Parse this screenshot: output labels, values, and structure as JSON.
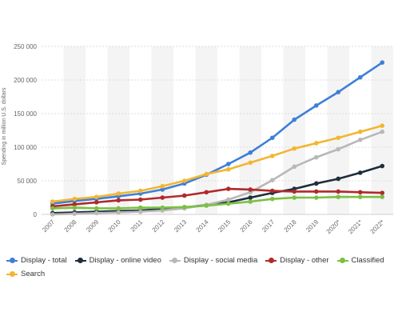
{
  "chart_data": {
    "type": "line",
    "ylabel": "Spending in million U.S. dollars",
    "ylim": [
      0,
      250000
    ],
    "yticks": [
      0,
      50000,
      100000,
      150000,
      200000,
      250000
    ],
    "ytick_labels": [
      "0",
      "50 000",
      "100 000",
      "150 000",
      "200 000",
      "250 000"
    ],
    "x": [
      "2007",
      "2008",
      "2009",
      "2010",
      "2011",
      "2012",
      "2013",
      "2014",
      "2015",
      "2016",
      "2017",
      "2018",
      "2019",
      "2020*",
      "2021*",
      "2022*"
    ],
    "grid": true,
    "legend_position": "bottom",
    "series": [
      {
        "name": "Display - total",
        "color": "#3d7fd8",
        "values": [
          16000,
          20000,
          23000,
          27000,
          31000,
          37000,
          46000,
          59000,
          75000,
          92000,
          114000,
          141000,
          162000,
          182000,
          204000,
          226000
        ]
      },
      {
        "name": "Display - online video",
        "color": "#1f2d3d",
        "values": [
          2000,
          3000,
          4000,
          5000,
          6000,
          8000,
          10000,
          14000,
          18000,
          25000,
          32000,
          38000,
          46000,
          53000,
          62000,
          72000
        ]
      },
      {
        "name": "Display - social media",
        "color": "#b8b8b8",
        "values": [
          0,
          1000,
          2000,
          3000,
          4000,
          6000,
          9000,
          14000,
          22000,
          33000,
          51000,
          71000,
          85000,
          97000,
          111000,
          123000
        ]
      },
      {
        "name": "Display - other",
        "color": "#b02a2a",
        "values": [
          12000,
          15000,
          18000,
          21000,
          22000,
          25000,
          28000,
          33000,
          38000,
          37000,
          35000,
          34000,
          34000,
          34000,
          33000,
          32000
        ]
      },
      {
        "name": "Classified",
        "color": "#7bc043",
        "values": [
          9000,
          10000,
          9000,
          9000,
          10000,
          10000,
          11000,
          13000,
          16000,
          19000,
          23000,
          25000,
          25000,
          26000,
          26000,
          26000
        ]
      },
      {
        "name": "Search",
        "color": "#f2b632",
        "values": [
          19000,
          23000,
          26000,
          31000,
          35000,
          42000,
          50000,
          60000,
          67000,
          77000,
          87000,
          98000,
          106000,
          114000,
          123000,
          132000
        ]
      }
    ]
  }
}
